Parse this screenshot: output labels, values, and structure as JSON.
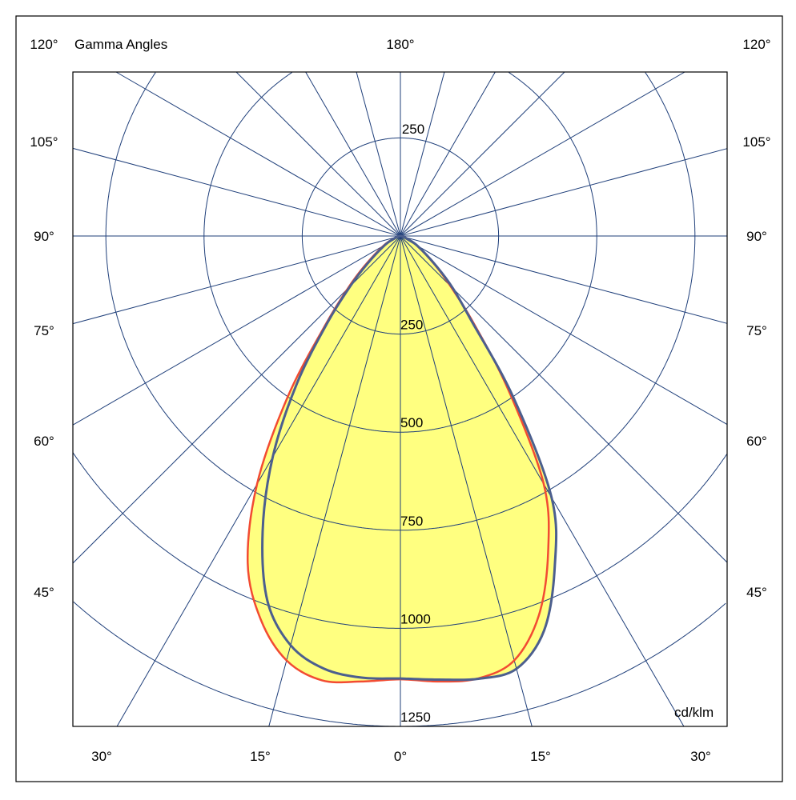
{
  "chart_data": {
    "type": "polar",
    "title": "Gamma Angles",
    "unit": "cd/klm",
    "radial_ticks": [
      250,
      500,
      750,
      1000,
      1250
    ],
    "radial_range": [
      0,
      1500
    ],
    "ring_values": [
      250,
      500,
      750,
      1000,
      1250,
      1500
    ],
    "top_ring_label": "250",
    "angle_step_deg": 15,
    "angle_labels": {
      "top": "180°",
      "side": [
        "120°",
        "105°",
        "90°",
        "75°",
        "60°",
        "45°"
      ],
      "bottom": [
        "30°",
        "15°",
        "0°",
        "15°",
        "30°"
      ]
    },
    "gamma": [
      0,
      5,
      10,
      15,
      20,
      25,
      30,
      35,
      40,
      45,
      50,
      60,
      70,
      80,
      90
    ],
    "series": [
      {
        "color": "#f24b32",
        "left": [
          1130,
          1140,
          1150,
          1120,
          1040,
          920,
          730,
          500,
          300,
          190,
          120,
          50,
          15,
          5,
          0
        ],
        "right": [
          1130,
          1140,
          1145,
          1120,
          1030,
          890,
          730,
          480,
          290,
          180,
          115,
          48,
          15,
          5,
          0
        ]
      },
      {
        "color": "#4c5f8e",
        "left": [
          1128,
          1130,
          1120,
          1080,
          990,
          830,
          650,
          460,
          290,
          180,
          110,
          45,
          15,
          5,
          0
        ],
        "right": [
          1128,
          1135,
          1146,
          1142,
          1070,
          930,
          770,
          500,
          280,
          190,
          120,
          50,
          15,
          5,
          0
        ]
      }
    ],
    "fill_color": "#ffff80",
    "grid_color": "#1f3f7a"
  }
}
